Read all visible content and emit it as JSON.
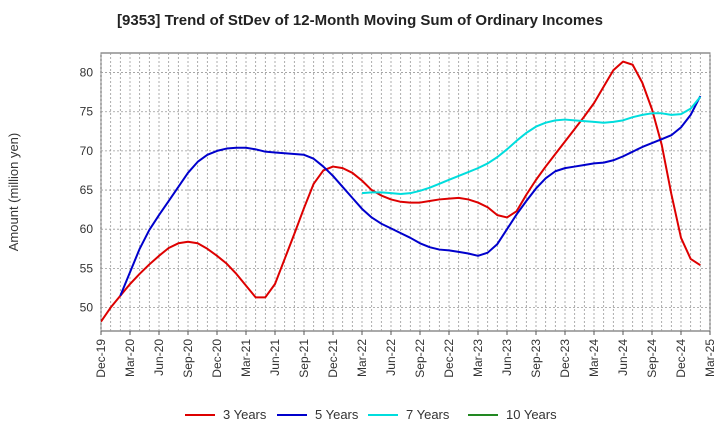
{
  "chart_data": {
    "type": "line",
    "title": "[9353]  Trend of StDev of 12-Month Moving Sum of Ordinary Incomes",
    "xlabel": "",
    "ylabel": "Amount (million yen)",
    "ylim": [
      47,
      82.5
    ],
    "yticks": [
      50,
      55,
      60,
      65,
      70,
      75,
      80
    ],
    "x_tick_labels": [
      "Dec-19",
      "Mar-20",
      "Jun-20",
      "Sep-20",
      "Dec-20",
      "Mar-21",
      "Jun-21",
      "Sep-21",
      "Dec-21",
      "Mar-22",
      "Jun-22",
      "Sep-22",
      "Dec-22",
      "Mar-23",
      "Jun-23",
      "Sep-23",
      "Dec-23",
      "Mar-24",
      "Jun-24",
      "Sep-24",
      "Dec-24",
      "Mar-25"
    ],
    "x_months": [
      "Dec-19",
      "Jan-20",
      "Feb-20",
      "Mar-20",
      "Apr-20",
      "May-20",
      "Jun-20",
      "Jul-20",
      "Aug-20",
      "Sep-20",
      "Oct-20",
      "Nov-20",
      "Dec-20",
      "Jan-21",
      "Feb-21",
      "Mar-21",
      "Apr-21",
      "May-21",
      "Jun-21",
      "Jul-21",
      "Aug-21",
      "Sep-21",
      "Oct-21",
      "Nov-21",
      "Dec-21",
      "Jan-22",
      "Feb-22",
      "Mar-22",
      "Apr-22",
      "May-22",
      "Jun-22",
      "Jul-22",
      "Aug-22",
      "Sep-22",
      "Oct-22",
      "Nov-22",
      "Dec-22",
      "Jan-23",
      "Feb-23",
      "Mar-23",
      "Apr-23",
      "May-23",
      "Jun-23",
      "Jul-23",
      "Aug-23",
      "Sep-23",
      "Oct-23",
      "Nov-23",
      "Dec-23",
      "Jan-24",
      "Feb-24",
      "Mar-24",
      "Apr-24",
      "May-24",
      "Jun-24",
      "Jul-24",
      "Aug-24",
      "Sep-24",
      "Oct-24",
      "Nov-24",
      "Dec-24",
      "Jan-25",
      "Feb-25",
      "Mar-25"
    ],
    "grid": true,
    "legend_position": "bottom",
    "series": [
      {
        "name": "3 Years",
        "color": "#dd0000",
        "start_index": 0,
        "values": [
          48.2,
          50.0,
          51.5,
          53.0,
          54.3,
          55.5,
          56.6,
          57.6,
          58.2,
          58.4,
          58.2,
          57.5,
          56.6,
          55.6,
          54.3,
          52.8,
          51.3,
          51.3,
          53.0,
          56.2,
          59.4,
          62.7,
          65.8,
          67.5,
          68.0,
          67.8,
          67.2,
          66.2,
          65.0,
          64.3,
          63.8,
          63.5,
          63.4,
          63.4,
          63.6,
          63.8,
          63.9,
          64.0,
          63.8,
          63.4,
          62.8,
          61.8,
          61.5,
          62.3,
          64.4,
          66.3,
          68.0,
          69.6,
          71.2,
          72.8,
          74.4,
          76.1,
          78.2,
          80.3,
          81.4,
          81.0,
          78.7,
          75.3,
          70.8,
          64.5,
          58.9,
          56.2,
          55.4
        ]
      },
      {
        "name": "5 Years",
        "color": "#0000cc",
        "start_index": 2,
        "values": [
          51.5,
          54.5,
          57.5,
          59.9,
          61.8,
          63.6,
          65.4,
          67.2,
          68.6,
          69.5,
          70.0,
          70.3,
          70.4,
          70.4,
          70.2,
          69.9,
          69.8,
          69.7,
          69.6,
          69.5,
          69.0,
          68.0,
          66.8,
          65.4,
          64.0,
          62.6,
          61.5,
          60.7,
          60.1,
          59.5,
          58.9,
          58.2,
          57.7,
          57.4,
          57.3,
          57.1,
          56.9,
          56.6,
          57.0,
          58.1,
          60.0,
          61.9,
          63.6,
          65.2,
          66.5,
          67.4,
          67.8,
          68.0,
          68.2,
          68.4,
          68.5,
          68.8,
          69.3,
          69.9,
          70.5,
          71.0,
          71.5,
          72.0,
          73.0,
          74.6,
          77.0
        ]
      },
      {
        "name": "7 Years",
        "color": "#00dddd",
        "start_index": 27,
        "values": [
          64.6,
          64.7,
          64.7,
          64.6,
          64.5,
          64.6,
          64.9,
          65.3,
          65.8,
          66.3,
          66.8,
          67.3,
          67.8,
          68.4,
          69.2,
          70.2,
          71.3,
          72.3,
          73.1,
          73.6,
          73.9,
          74.0,
          73.9,
          73.8,
          73.7,
          73.6,
          73.7,
          73.9,
          74.3,
          74.6,
          74.8,
          74.8,
          74.6,
          74.7,
          75.4,
          76.9
        ]
      },
      {
        "name": "10 Years",
        "color": "#228822",
        "start_index": 0,
        "values": []
      }
    ]
  }
}
